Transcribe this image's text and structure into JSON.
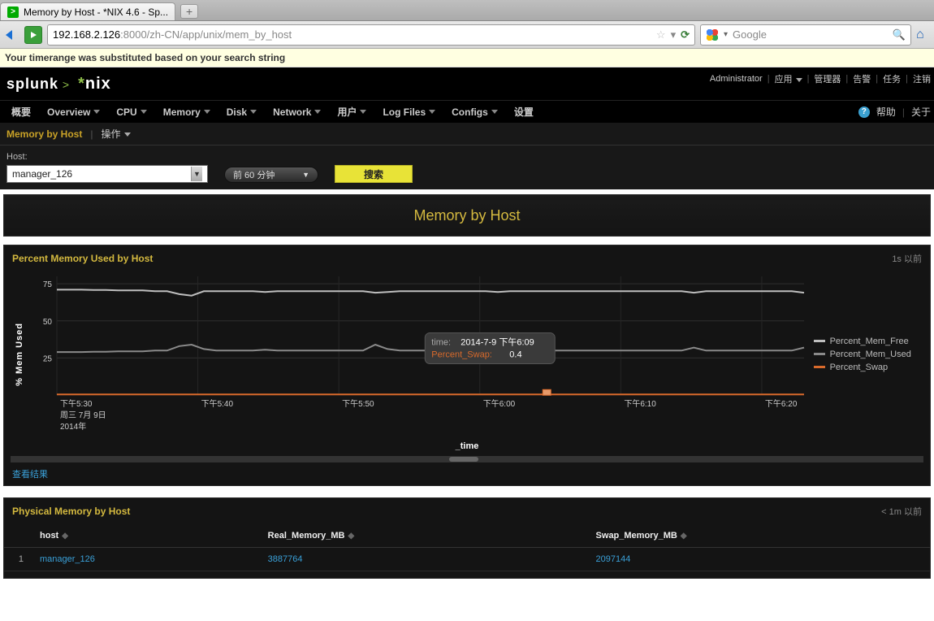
{
  "browser": {
    "tab_title": "Memory by Host - *NIX 4.6 - Sp...",
    "url_host": "192.168.2.126",
    "url_path": ":8000/zh-CN/app/unix/mem_by_host",
    "search_placeholder": "Google"
  },
  "info_bar": "Your timerange was substituted based on your search string",
  "sp_header": {
    "brand": "splunk",
    "product": "nix",
    "top_links": [
      "Administrator",
      "应用",
      "管理器",
      "告警",
      "任务",
      "注销"
    ]
  },
  "main_nav": {
    "items": [
      "概要",
      "Overview",
      "CPU",
      "Memory",
      "Disk",
      "Network",
      "用户",
      "Log Files",
      "Configs",
      "设置"
    ],
    "dropdown_flags": [
      false,
      true,
      true,
      true,
      true,
      true,
      true,
      true,
      true,
      false
    ],
    "help": "帮助",
    "about": "关于"
  },
  "sub_bar": {
    "title": "Memory by Host",
    "action": "操作"
  },
  "controls": {
    "host_label": "Host:",
    "host_value": "manager_126",
    "time_range": "前 60 分钟",
    "search_label": "搜索"
  },
  "title_panel": "Memory by Host",
  "chart1": {
    "title": "Percent Memory Used by Host",
    "age": "1s 以前",
    "ylabel": "% Mem Used",
    "xlabel": "_time",
    "yticks": [
      25,
      50,
      75
    ],
    "ylim": [
      0,
      80
    ],
    "xticks": [
      "下午5:30",
      "下午5:40",
      "下午5:50",
      "下午6:00",
      "下午6:10",
      "下午6:20"
    ],
    "xsub1": "周三 7月 9日",
    "xsub2": "2014年",
    "series": [
      {
        "name": "Percent_Mem_Free",
        "color": "#bfbfbf",
        "values": [
          71,
          71,
          71,
          70.8,
          70.8,
          70.5,
          70.5,
          70.5,
          70,
          70,
          68,
          67,
          70,
          70,
          70,
          70,
          70,
          69.5,
          70,
          70,
          70,
          70,
          70,
          70,
          70,
          70,
          69,
          69.5,
          70,
          70,
          70,
          70,
          70,
          70,
          70,
          70,
          69.5,
          70,
          70,
          70,
          70,
          70,
          70,
          70,
          70,
          70,
          70,
          70,
          70,
          70,
          70,
          70,
          69,
          70,
          70,
          70,
          70,
          70,
          70,
          70,
          70,
          69
        ]
      },
      {
        "name": "Percent_Mem_Used",
        "color": "#8a8a8a",
        "values": [
          29,
          29,
          29,
          29.2,
          29.2,
          29.5,
          29.5,
          29.5,
          30,
          30,
          33,
          34,
          31,
          30,
          30,
          30,
          30,
          30.5,
          30,
          30,
          30,
          30,
          30,
          30,
          30,
          30,
          34,
          31,
          30,
          30,
          30,
          30,
          30.5,
          30,
          30,
          30,
          30.5,
          30,
          30,
          30,
          30,
          30,
          30,
          30,
          30,
          30,
          30,
          30,
          30,
          30,
          30,
          30,
          32,
          30,
          30,
          30,
          30,
          30,
          30,
          30,
          30,
          32
        ]
      },
      {
        "name": "Percent_Swap",
        "color": "#d96a2b",
        "values": [
          0.4,
          0.4,
          0.4,
          0.4,
          0.4,
          0.4,
          0.4,
          0.4,
          0.4,
          0.4,
          0.4,
          0.4,
          0.4,
          0.4,
          0.4,
          0.4,
          0.4,
          0.4,
          0.4,
          0.4,
          0.4,
          0.4,
          0.4,
          0.4,
          0.4,
          0.4,
          0.4,
          0.4,
          0.4,
          0.4,
          0.4,
          0.4,
          0.4,
          0.4,
          0.4,
          0.4,
          0.4,
          0.4,
          0.4,
          0.4,
          0.4,
          0.4,
          0.4,
          0.4,
          0.4,
          0.4,
          0.4,
          0.4,
          0.4,
          0.4,
          0.4,
          0.4,
          0.4,
          0.4,
          0.4,
          0.4,
          0.4,
          0.4,
          0.4,
          0.4,
          0.4,
          0.4
        ]
      }
    ],
    "tooltip": {
      "time_label": "time:",
      "time_value": "2014-7-9 下午6:09",
      "series_label": "Percent_Swap:",
      "series_value": "0.4",
      "series_color": "#d96a2b",
      "at_index": 40
    },
    "highlight_index": 40,
    "view_results": "查看结果"
  },
  "table1": {
    "title": "Physical Memory by Host",
    "age": "< 1m 以前",
    "columns": [
      "host",
      "Real_Memory_MB",
      "Swap_Memory_MB"
    ],
    "rows": [
      {
        "idx": "1",
        "host": "manager_126",
        "real": "3887764",
        "swap": "2097144"
      }
    ]
  }
}
